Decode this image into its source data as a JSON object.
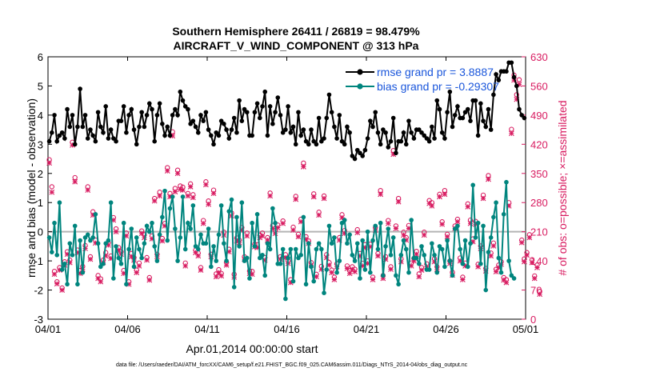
{
  "chart_data": {
    "type": "line",
    "title": "Southern Hemisphere 26411 / 26819 = 98.479%",
    "subtitle": "AIRCRAFT_V_WIND_COMPONENT @ 313 hPa",
    "xlabel": "Apr.01,2014 00:00:00 start",
    "ylabel": "rmse and bias (model - observation)",
    "ylabel_right": "# of obs: o=possible; ×=assimilated",
    "xlim": [
      0,
      30
    ],
    "ylim": [
      -3,
      6
    ],
    "ylim_right": [
      0,
      630
    ],
    "x_ticks": [
      0,
      5,
      10,
      15,
      20,
      25,
      30
    ],
    "x_tick_labels": [
      "04/01",
      "04/06",
      "04/11",
      "04/16",
      "04/21",
      "04/26",
      "05/01"
    ],
    "y_ticks": [
      -3,
      -2,
      -1,
      0,
      1,
      2,
      3,
      4,
      5,
      6
    ],
    "y_tick_labels": [
      "-3",
      "-2",
      "-1",
      "0",
      "1",
      "2",
      "3",
      "4",
      "5",
      "6"
    ],
    "y_right_ticks": [
      0,
      70,
      140,
      210,
      280,
      350,
      420,
      490,
      560,
      630
    ],
    "y_right_tick_labels": [
      "0",
      "70",
      "140",
      "210",
      "280",
      "350",
      "420",
      "490",
      "560",
      "630"
    ],
    "zero_line": 0,
    "legend_placement": "top-right",
    "series": [
      {
        "name": "rmse grand pr = 3.8887",
        "legend_label": "rmse grand pr = 3.8887",
        "color": "#000000",
        "values": [
          3.1,
          3.4,
          4.0,
          3.1,
          3.3,
          3.4,
          3.2,
          4.2,
          3.6,
          4.0,
          3.0,
          3.6,
          4.9,
          3.6,
          4.0,
          3.2,
          3.5,
          3.3,
          3.1,
          4.1,
          3.6,
          3.4,
          4.3,
          3.2,
          3.5,
          3.2,
          3.1,
          3.8,
          3.8,
          4.3,
          3.4,
          4.0,
          4.2,
          3.5,
          3.0,
          3.6,
          4.1,
          3.6,
          4.0,
          4.4,
          4.2,
          3.1,
          4.0,
          4.4,
          3.7,
          3.3,
          3.6,
          3.3,
          4.0,
          4.2,
          4.0,
          4.8,
          4.5,
          4.3,
          4.2,
          3.7,
          3.8,
          3.6,
          3.4,
          4.0,
          3.8,
          4.1,
          3.5,
          3.3,
          3.0,
          3.4,
          3.3,
          3.8,
          3.7,
          3.5,
          3.2,
          3.5,
          3.9,
          3.4,
          4.5,
          3.8,
          4.2,
          4.1,
          3.3,
          3.3,
          4.1,
          4.4,
          3.9,
          4.3,
          4.8,
          3.3,
          4.3,
          3.7,
          4.1,
          4.6,
          4.0,
          3.4,
          3.5,
          4.3,
          3.4,
          3.6,
          3.0,
          4.1,
          3.3,
          3.5,
          3.1,
          3.0,
          3.5,
          3.1,
          3.0,
          3.9,
          3.1,
          3.2,
          3.9,
          4.7,
          4.1,
          3.6,
          3.2,
          4.0,
          3.1,
          3.0,
          3.6,
          3.4,
          2.6,
          2.5,
          2.8,
          2.7,
          2.6,
          2.8,
          3.2,
          3.8,
          3.6,
          4.1,
          3.4,
          3.0,
          3.5,
          3.4,
          2.9,
          3.1,
          3.9,
          2.7,
          3.1,
          3.1,
          3.4,
          3.0,
          3.8,
          3.4,
          3.2,
          3.5,
          3.5,
          3.4,
          3.3,
          3.2,
          3.1,
          3.6,
          3.2,
          4.5,
          4.2,
          3.4,
          3.2,
          4.1,
          4.8,
          3.6,
          4.0,
          4.3,
          3.9,
          3.9,
          4.1,
          4.2,
          3.8,
          4.5,
          4.5,
          3.3,
          4.4,
          3.8,
          3.6,
          4.2,
          3.5,
          4.7,
          5.4,
          5.2,
          5.5,
          5.5,
          5.5,
          5.8,
          5.8,
          5.3,
          5.0,
          4.2,
          4.0,
          3.9
        ]
      },
      {
        "name": "bias grand pr = -0.29307",
        "legend_label": "bias grand pr = -0.29307",
        "color": "#00857e",
        "values": [
          -0.2,
          -0.7,
          0.3,
          -0.8,
          1.0,
          -1.3,
          -1.1,
          -1.8,
          -0.4,
          -0.8,
          0.2,
          -1.8,
          -0.3,
          -1.4,
          -0.2,
          -0.1,
          -0.3,
          -0.2,
          0.6,
          -0.4,
          -1.2,
          -1.1,
          -0.4,
          -0.3,
          1.0,
          -1.6,
          -0.5,
          -0.9,
          -1.1,
          0.3,
          -1.8,
          -0.6,
          0.1,
          -1.2,
          -0.2,
          -0.6,
          -0.9,
          -0.4,
          0.2,
          0.0,
          0.3,
          -0.5,
          -1.0,
          -0.1,
          0.5,
          1.4,
          -0.3,
          0.8,
          1.2,
          0.1,
          -1.0,
          -0.2,
          1.2,
          -0.6,
          0.3,
          0.1,
          0.9,
          -0.5,
          -0.6,
          -0.1,
          -0.4,
          -0.4,
          0.1,
          -1.2,
          -0.5,
          -1.0,
          -0.1,
          0.9,
          -0.4,
          -1.0,
          0.7,
          1.1,
          -1.9,
          0.5,
          -0.5,
          1.0,
          -1.0,
          -0.9,
          -1.6,
          0.3,
          -0.5,
          0.6,
          -0.9,
          -0.8,
          -1.5,
          -0.4,
          -0.6,
          0.8,
          0.3,
          -1.1,
          -1.1,
          -0.6,
          -2.3,
          -0.9,
          -0.6,
          -1.7,
          -0.6,
          -0.9,
          -0.8,
          0.5,
          -1.8,
          -0.4,
          -1.2,
          -1.7,
          -0.6,
          -0.4,
          -0.6,
          -2.1,
          -1.3,
          0.2,
          -0.4,
          -0.2,
          -1.4,
          -1.0,
          0.3,
          0.4,
          -0.4,
          -0.1,
          -0.8,
          -1.0,
          -0.4,
          -1.6,
          -0.3,
          -1.3,
          0.0,
          -1.4,
          -0.3,
          0.2,
          -0.6,
          0.3,
          -1.5,
          -0.5,
          0.1,
          -0.8,
          -0.2,
          -1.5,
          -1.8,
          -0.8,
          -0.3,
          -0.6,
          -1.4,
          0.4,
          -0.9,
          -0.9,
          -1.1,
          -0.5,
          -0.8,
          -1.3,
          -1.3,
          -0.4,
          -0.8,
          -1.4,
          -0.5,
          -0.6,
          -1.2,
          -0.3,
          -1.0,
          -1.5,
          0.1,
          0.2,
          -0.6,
          -1.1,
          -0.3,
          -1.2,
          -0.4,
          1.6,
          -0.2,
          0.3,
          -1.1,
          0.2,
          -2.0,
          -0.7,
          -0.2,
          0.5,
          1.0,
          -0.9,
          -1.4,
          0.6,
          1.7,
          -1.0,
          -1.5,
          -1.6
        ]
      }
    ],
    "obs_possible": {
      "name": "possible",
      "marker": "o",
      "color": "#d81b60",
      "values": [
        383,
        318,
        115,
        90,
        124,
        75,
        138,
        162,
        142,
        425,
        340,
        166,
        117,
        127,
        177,
        318,
        150,
        258,
        190,
        105,
        97,
        142,
        160,
        184,
        152,
        244,
        217,
        172,
        162,
        117,
        207,
        90,
        158,
        148,
        118,
        135,
        212,
        203,
        148,
        100,
        200,
        290,
        156,
        305,
        194,
        230,
        364,
        302,
        450,
        314,
        358,
        320,
        317,
        135,
        302,
        325,
        299,
        166,
        159,
        124,
        237,
        330,
        284,
        156,
        310,
        109,
        119,
        110,
        209,
        137,
        168,
        255,
        108,
        195,
        190,
        220,
        150,
        207,
        116,
        115,
        180,
        179,
        202,
        207,
        148,
        196,
        303,
        225,
        213,
        226,
        150,
        236,
        155,
        140,
        95,
        221,
        295,
        204,
        240,
        375,
        198,
        188,
        136,
        301,
        108,
        257,
        127,
        296,
        155,
        136,
        118,
        101,
        133,
        196,
        251,
        213,
        128,
        117,
        126,
        120,
        215,
        158,
        134,
        179,
        140,
        180,
        101,
        220,
        158,
        309,
        105,
        150,
        237,
        126,
        405,
        224,
        290,
        145,
        209,
        196,
        225,
        135,
        146,
        163,
        109,
        124,
        209,
        133,
        285,
        280,
        145,
        126,
        300,
        234,
        309,
        204,
        140,
        113,
        224,
        240,
        147,
        101,
        135,
        277,
        238,
        193,
        235,
        132,
        176,
        298,
        122,
        345,
        159,
        183,
        120,
        130,
        138,
        100,
        95,
        280,
        456,
        586,
        539,
        575,
        190,
        145,
        160,
        203,
        143,
        104,
        130,
        67
      ]
    },
    "obs_assimilated": {
      "name": "assimilated",
      "marker": "*",
      "color": "#d81b60",
      "values": [
        375,
        305,
        108,
        85,
        118,
        70,
        130,
        156,
        136,
        418,
        330,
        160,
        110,
        120,
        170,
        310,
        144,
        250,
        183,
        98,
        90,
        136,
        152,
        178,
        146,
        238,
        210,
        166,
        156,
        110,
        200,
        84,
        150,
        142,
        112,
        128,
        206,
        196,
        142,
        94,
        193,
        284,
        150,
        296,
        188,
        224,
        356,
        294,
        440,
        306,
        350,
        312,
        310,
        128,
        296,
        318,
        292,
        160,
        152,
        118,
        230,
        323,
        276,
        150,
        302,
        102,
        112,
        104,
        202,
        130,
        162,
        248,
        101,
        188,
        184,
        214,
        144,
        200,
        110,
        108,
        174,
        172,
        196,
        200,
        142,
        190,
        296,
        218,
        206,
        220,
        144,
        230,
        148,
        134,
        88,
        214,
        288,
        198,
        234,
        366,
        192,
        182,
        130,
        294,
        102,
        250,
        120,
        290,
        148,
        130,
        112,
        95,
        126,
        190,
        244,
        206,
        122,
        110,
        120,
        114,
        208,
        152,
        128,
        172,
        134,
        174,
        95,
        214,
        152,
        300,
        98,
        144,
        230,
        120,
        396,
        218,
        282,
        138,
        202,
        190,
        218,
        128,
        140,
        156,
        102,
        118,
        202,
        126,
        278,
        272,
        138,
        120,
        294,
        228,
        300,
        198,
        134,
        106,
        218,
        234,
        140,
        95,
        128,
        270,
        230,
        186,
        228,
        126,
        170,
        290,
        116,
        336,
        152,
        176,
        114,
        124,
        132,
        94,
        88,
        272,
        446,
        574,
        528,
        564,
        184,
        138,
        154,
        196,
        136,
        98,
        124,
        60
      ]
    }
  },
  "footnote": "data file: /Users/raeder/DAI/ATM_forcXX/CAM6_setup/f.e21.FHIST_BGC.f09_025.CAM6assim.011/Diags_NTrS_2014-04/obs_diag_output.nc"
}
